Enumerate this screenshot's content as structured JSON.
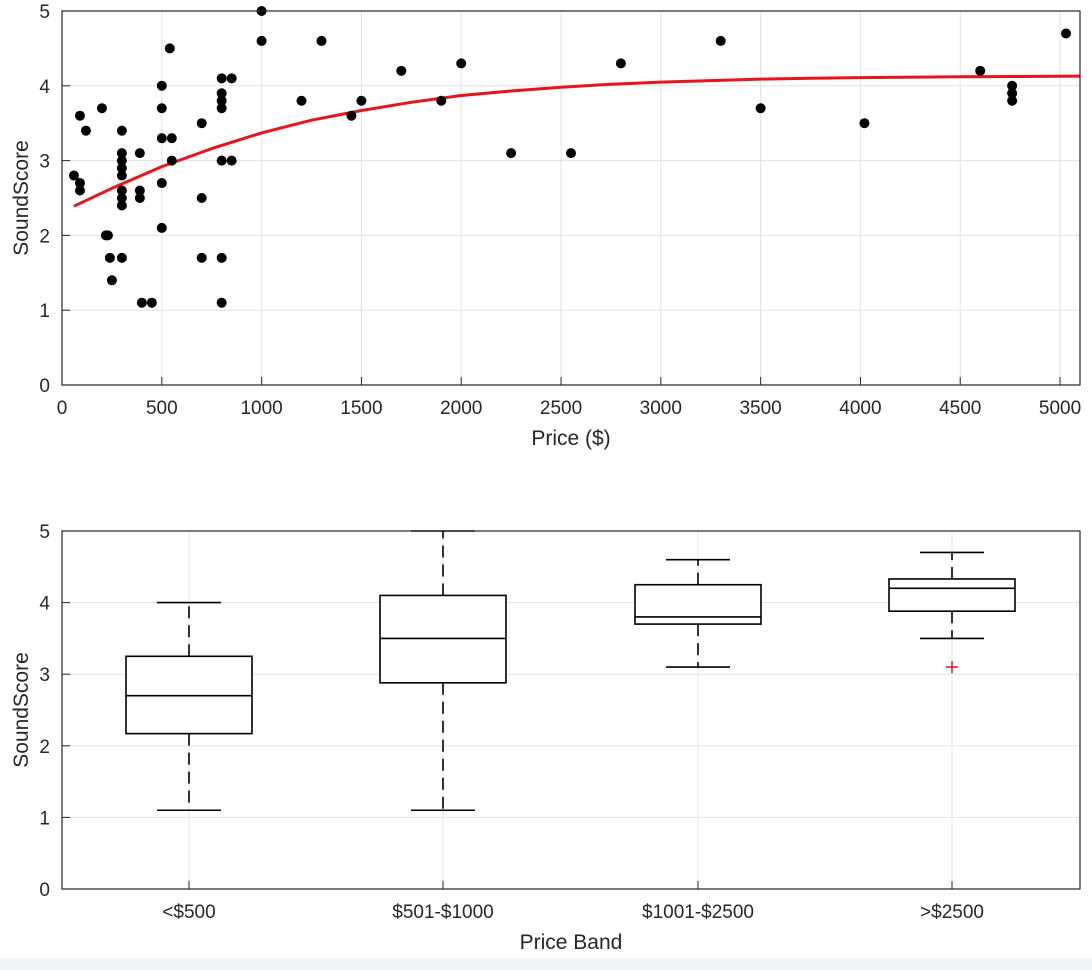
{
  "chart_data": [
    {
      "type": "scatter",
      "title": "",
      "xlabel": "Price ($)",
      "ylabel": "SoundScore",
      "xlim": [
        0,
        5100
      ],
      "ylim": [
        0,
        5
      ],
      "xticks": [
        0,
        500,
        1000,
        1500,
        2000,
        2500,
        3000,
        3500,
        4000,
        4500,
        5000
      ],
      "yticks": [
        0,
        1,
        2,
        3,
        4,
        5
      ],
      "grid": true,
      "legend": "none",
      "colors": {
        "points": "#000000",
        "fit": "#e8141b"
      },
      "points": [
        [
          60,
          2.8
        ],
        [
          90,
          2.7
        ],
        [
          90,
          2.6
        ],
        [
          90,
          3.6
        ],
        [
          120,
          3.4
        ],
        [
          200,
          3.7
        ],
        [
          220,
          2.0
        ],
        [
          230,
          2.0
        ],
        [
          240,
          1.7
        ],
        [
          250,
          1.4
        ],
        [
          300,
          3.4
        ],
        [
          300,
          3.1
        ],
        [
          300,
          3.0
        ],
        [
          300,
          2.9
        ],
        [
          300,
          2.8
        ],
        [
          300,
          2.6
        ],
        [
          300,
          2.5
        ],
        [
          300,
          2.4
        ],
        [
          300,
          1.7
        ],
        [
          390,
          3.1
        ],
        [
          390,
          2.6
        ],
        [
          390,
          2.5
        ],
        [
          400,
          1.1
        ],
        [
          450,
          1.1
        ],
        [
          500,
          4.0
        ],
        [
          500,
          3.7
        ],
        [
          500,
          3.3
        ],
        [
          500,
          2.7
        ],
        [
          500,
          2.1
        ],
        [
          540,
          4.5
        ],
        [
          550,
          3.3
        ],
        [
          550,
          3.0
        ],
        [
          700,
          3.5
        ],
        [
          700,
          2.5
        ],
        [
          700,
          1.7
        ],
        [
          800,
          4.1
        ],
        [
          800,
          3.9
        ],
        [
          800,
          3.8
        ],
        [
          800,
          3.7
        ],
        [
          800,
          3.0
        ],
        [
          800,
          1.7
        ],
        [
          800,
          1.1
        ],
        [
          850,
          4.1
        ],
        [
          850,
          3.0
        ],
        [
          1000,
          5.0
        ],
        [
          1000,
          4.6
        ],
        [
          1200,
          3.8
        ],
        [
          1300,
          4.6
        ],
        [
          1450,
          3.6
        ],
        [
          1500,
          3.8
        ],
        [
          1700,
          4.2
        ],
        [
          1900,
          3.8
        ],
        [
          2000,
          4.3
        ],
        [
          2250,
          3.1
        ],
        [
          2550,
          3.1
        ],
        [
          2800,
          4.3
        ],
        [
          3300,
          4.6
        ],
        [
          3500,
          3.7
        ],
        [
          4020,
          3.5
        ],
        [
          4600,
          4.2
        ],
        [
          4760,
          4.0
        ],
        [
          4760,
          3.9
        ],
        [
          4760,
          3.8
        ],
        [
          5030,
          4.7
        ]
      ],
      "fit_curve": [
        [
          60,
          2.39
        ],
        [
          250,
          2.63
        ],
        [
          500,
          2.92
        ],
        [
          750,
          3.16
        ],
        [
          1000,
          3.37
        ],
        [
          1250,
          3.54
        ],
        [
          1500,
          3.67
        ],
        [
          1750,
          3.78
        ],
        [
          2000,
          3.87
        ],
        [
          2250,
          3.93
        ],
        [
          2500,
          3.98
        ],
        [
          2750,
          4.02
        ],
        [
          3000,
          4.05
        ],
        [
          3250,
          4.07
        ],
        [
          3500,
          4.09
        ],
        [
          3750,
          4.1
        ],
        [
          4000,
          4.11
        ],
        [
          4500,
          4.12
        ],
        [
          5100,
          4.13
        ]
      ]
    },
    {
      "type": "box",
      "title": "",
      "xlabel": "Price Band",
      "ylabel": "SoundScore",
      "ylim": [
        0,
        5
      ],
      "yticks": [
        0,
        1,
        2,
        3,
        4,
        5
      ],
      "grid": true,
      "legend": "none",
      "colors": {
        "box": "#000000",
        "outlier": "#e8141b"
      },
      "categories": [
        "<$500",
        "$501-$1000",
        "$1001-$2500",
        ">$2500"
      ],
      "boxes": [
        {
          "whisker_low": 1.1,
          "q1": 2.17,
          "median": 2.7,
          "q3": 3.25,
          "whisker_high": 4.0,
          "outliers": []
        },
        {
          "whisker_low": 1.1,
          "q1": 2.88,
          "median": 3.5,
          "q3": 4.1,
          "whisker_high": 5.0,
          "outliers": []
        },
        {
          "whisker_low": 3.1,
          "q1": 3.7,
          "median": 3.8,
          "q3": 4.25,
          "whisker_high": 4.6,
          "outliers": []
        },
        {
          "whisker_low": 3.5,
          "q1": 3.88,
          "median": 4.2,
          "q3": 4.33,
          "whisker_high": 4.7,
          "outliers": [
            3.1
          ]
        }
      ]
    }
  ]
}
